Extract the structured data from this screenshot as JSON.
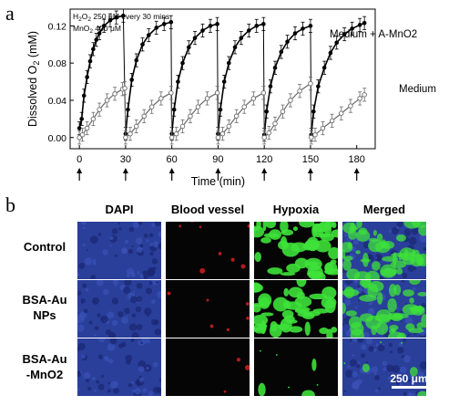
{
  "panel_a": {
    "letter": "a",
    "chart_data": {
      "type": "line",
      "x_axis": {
        "label": "Time (min)",
        "ticks": [
          0,
          30,
          60,
          90,
          120,
          150,
          180
        ],
        "range": [
          -6,
          192
        ]
      },
      "y_axis": {
        "label": "Dissolved O2 (mM)",
        "ticks": [
          "0.00",
          "0.04",
          "0.08",
          "0.12"
        ],
        "range": [
          -0.012,
          0.138
        ]
      },
      "annotations": {
        "h2o2": "H2O2   250 μM every 30 mins",
        "mno2": "MnO2  400 μM"
      },
      "series": [
        {
          "name": "Medium + A-MnO2",
          "marker": "filled-circle",
          "color": "#000000",
          "x": [
            0,
            1.5,
            3,
            5,
            7,
            9,
            11,
            13,
            16,
            20,
            24,
            28.5,
            30,
            31.5,
            34,
            37,
            41,
            45,
            50,
            55,
            59.5,
            60,
            61.5,
            64,
            67,
            71,
            75,
            80,
            85,
            89.5,
            90,
            91.5,
            94,
            97,
            101,
            105,
            110,
            115,
            119.5,
            120,
            121.5,
            124,
            127,
            131,
            135,
            140,
            145,
            150,
            150.5,
            152,
            155,
            159,
            163,
            167,
            172,
            177,
            182,
            185
          ],
          "y": [
            0.01,
            0.02,
            0.045,
            0.065,
            0.082,
            0.095,
            0.105,
            0.112,
            0.12,
            0.126,
            0.129,
            0.131,
            0.004,
            0.03,
            0.062,
            0.083,
            0.1,
            0.11,
            0.118,
            0.122,
            0.124,
            0.004,
            0.03,
            0.06,
            0.08,
            0.097,
            0.107,
            0.115,
            0.12,
            0.122,
            0.004,
            0.03,
            0.06,
            0.08,
            0.097,
            0.107,
            0.115,
            0.12,
            0.122,
            0.003,
            0.028,
            0.055,
            0.075,
            0.092,
            0.103,
            0.112,
            0.117,
            0.12,
            0.003,
            0.028,
            0.055,
            0.075,
            0.091,
            0.102,
            0.111,
            0.117,
            0.121,
            0.123
          ]
        },
        {
          "name": "Medium",
          "marker": "open-circle",
          "color": "#6a6a6a",
          "x": [
            0,
            2,
            5,
            9,
            13,
            18,
            23,
            28,
            29.5,
            30,
            33,
            37,
            42,
            47,
            53,
            59.5,
            60,
            63,
            67,
            72,
            77,
            83,
            89.5,
            90,
            93,
            97,
            102,
            107,
            113,
            119.5,
            120,
            123,
            127,
            132,
            137,
            143,
            150,
            150.5,
            153,
            158,
            164,
            170,
            176,
            182,
            185
          ],
          "y": [
            0.0,
            0.003,
            0.01,
            0.02,
            0.03,
            0.04,
            0.047,
            0.052,
            0.053,
            0.0,
            0.004,
            0.012,
            0.023,
            0.033,
            0.042,
            0.048,
            0.0,
            0.004,
            0.012,
            0.023,
            0.033,
            0.042,
            0.048,
            0.0,
            0.004,
            0.012,
            0.023,
            0.033,
            0.042,
            0.048,
            0.0,
            0.005,
            0.015,
            0.028,
            0.04,
            0.05,
            0.058,
            0.0,
            0.003,
            0.01,
            0.018,
            0.026,
            0.034,
            0.042,
            0.046
          ]
        }
      ],
      "error_bar_mm": 0.007,
      "injection_arrows_at": [
        0,
        30,
        60,
        90,
        120,
        150,
        180
      ]
    }
  },
  "panel_b": {
    "letter": "b",
    "columns": [
      "DAPI",
      "Blood vessel",
      "Hypoxia",
      "Merged"
    ],
    "rows": [
      "Control",
      "BSA-Au NPs",
      "BSA-Au -MnO2"
    ],
    "row_lines": [
      [
        "Control"
      ],
      [
        "BSA-Au",
        "NPs"
      ],
      [
        "BSA-Au",
        "-MnO2"
      ]
    ],
    "hypoxia_signal": [
      0.65,
      0.6,
      0.04
    ],
    "scale_bar": "250 μm",
    "colors": {
      "dapi_blue": "#2a3f9a",
      "vessel_red": "#d42020",
      "hypoxia_green": "#3ee23a",
      "background": "#050505"
    }
  }
}
